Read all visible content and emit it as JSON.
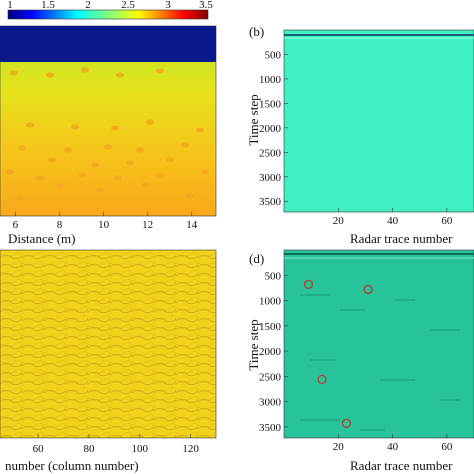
{
  "colorbar": {
    "ticks": [
      "1",
      "1.5",
      "2",
      "2.5",
      "3",
      "3.5"
    ],
    "colormap": "jet"
  },
  "panels": {
    "a": {
      "xticks": [
        "6",
        "8",
        "10",
        "12",
        "14"
      ],
      "xlabel": "Distance (m)"
    },
    "b": {
      "label": "(b)",
      "ylabel": "Time step",
      "yticks": [
        "500",
        "1000",
        "1500",
        "2000",
        "2500",
        "3000",
        "3500"
      ],
      "xticks": [
        "20",
        "40",
        "60"
      ],
      "xlabel": "Radar trace number",
      "fill_color": "#3ef0c2"
    },
    "c": {
      "xticks": [
        "60",
        "80",
        "100",
        "120"
      ],
      "xlabel": "number (column number)",
      "fill_color": "#f2d21a"
    },
    "d": {
      "label": "(d)",
      "ylabel": "Time step",
      "yticks": [
        "500",
        "1000",
        "1500",
        "2000",
        "2500",
        "3000",
        "3500"
      ],
      "xticks": [
        "20",
        "40",
        "60"
      ],
      "xlabel": "Radar trace number",
      "fill_color": "#27c39a",
      "markers": [
        {
          "trace": 9,
          "time": 680
        },
        {
          "trace": 31,
          "time": 780
        },
        {
          "trace": 14,
          "time": 2560
        },
        {
          "trace": 23,
          "time": 3430
        }
      ],
      "marker_color": "#c0392b"
    }
  }
}
